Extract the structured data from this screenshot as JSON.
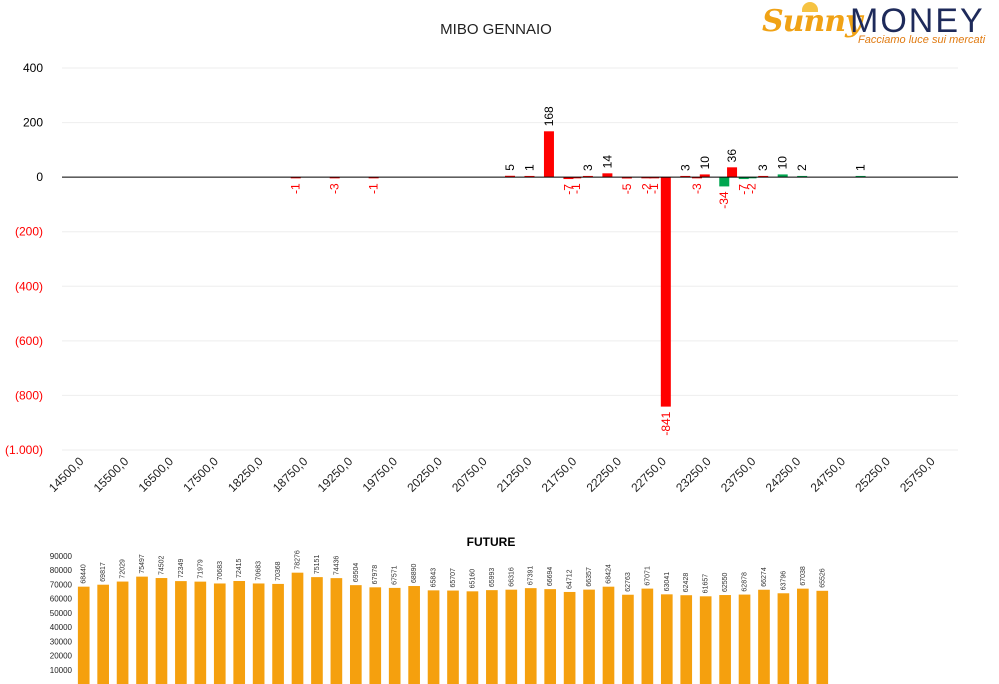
{
  "chart_data": [
    {
      "type": "bar",
      "title": "MIBO GENNAIO",
      "ylim": [
        -1000,
        400
      ],
      "y_ticks": [
        400,
        200,
        0,
        -200,
        -400,
        -600,
        -800,
        -1000
      ],
      "y_tick_labels": [
        "400",
        "200",
        "0",
        "(200)",
        "(400)",
        "(600)",
        "(800)",
        "(1.000)"
      ],
      "x_min": 14500,
      "x_max": 26000,
      "x_ticks": [
        "14500,0",
        "15500,0",
        "16500,0",
        "17500,0",
        "18250,0",
        "18750,0",
        "19250,0",
        "19750,0",
        "20250,0",
        "20750,0",
        "21250,0",
        "21750,0",
        "22250,0",
        "22750,0",
        "23250,0",
        "23750,0",
        "24250,0",
        "24750,0",
        "25250,0",
        "25750,0"
      ],
      "colors": {
        "red": "#ff0000",
        "green": "#00a650",
        "label_neg": "#ff0000",
        "label_pos": "#000000"
      },
      "points": [
        {
          "x": 17500,
          "value": -1,
          "label": "-1",
          "color": "red"
        },
        {
          "x": 18000,
          "value": -3,
          "label": "-3",
          "color": "red"
        },
        {
          "x": 18500,
          "value": -1,
          "label": "-1",
          "color": "red"
        },
        {
          "x": 20250,
          "value": 5,
          "label": "5",
          "color": "red"
        },
        {
          "x": 20500,
          "value": 1,
          "label": "1",
          "color": "red"
        },
        {
          "x": 20750,
          "value": 168,
          "label": "168",
          "color": "red"
        },
        {
          "x": 21000,
          "value": -7,
          "label": "-7",
          "color": "red"
        },
        {
          "x": 21100,
          "value": -1,
          "label": "-1",
          "color": "red"
        },
        {
          "x": 21250,
          "value": 3,
          "label": "3",
          "color": "red"
        },
        {
          "x": 21500,
          "value": 14,
          "label": "14",
          "color": "red"
        },
        {
          "x": 21750,
          "value": -5,
          "label": "-5",
          "color": "red"
        },
        {
          "x": 22000,
          "value": -2,
          "label": "-2",
          "color": "red"
        },
        {
          "x": 22100,
          "value": -1,
          "label": "-1",
          "color": "red"
        },
        {
          "x": 22250,
          "value": -841,
          "label": "-841",
          "color": "red"
        },
        {
          "x": 22500,
          "value": 3,
          "label": "3",
          "color": "red"
        },
        {
          "x": 22650,
          "value": -3,
          "label": "-3",
          "color": "red"
        },
        {
          "x": 22750,
          "value": 10,
          "label": "10",
          "color": "red"
        },
        {
          "x": 23000,
          "value": -34,
          "label": "-34",
          "color": "green"
        },
        {
          "x": 23100,
          "value": 36,
          "label": "36",
          "color": "red"
        },
        {
          "x": 23250,
          "value": -7,
          "label": "-7",
          "color": "green"
        },
        {
          "x": 23350,
          "value": -2,
          "label": "-2",
          "color": "green"
        },
        {
          "x": 23500,
          "value": 3,
          "label": "3",
          "color": "red"
        },
        {
          "x": 23750,
          "value": 10,
          "label": "10",
          "color": "green"
        },
        {
          "x": 24000,
          "value": 2,
          "label": "2",
          "color": "green"
        },
        {
          "x": 24750,
          "value": 1,
          "label": "1",
          "color": "green"
        }
      ]
    },
    {
      "type": "bar",
      "title": "FUTURE",
      "ylim": [
        0,
        90000
      ],
      "y_ticks": [
        10000,
        20000,
        30000,
        40000,
        50000,
        60000,
        70000,
        80000,
        90000
      ],
      "bar_color": "#f5a00e",
      "values": [
        68440,
        69817,
        72029,
        75497,
        74502,
        72349,
        71979,
        70683,
        72415,
        70683,
        70368,
        78276,
        75151,
        74436,
        69504,
        67978,
        67571,
        68890,
        65843,
        65707,
        65160,
        65993,
        66316,
        67391,
        66694,
        64712,
        66357,
        68424,
        62763,
        67071,
        63041,
        62428,
        61657,
        62550,
        62878,
        66274,
        63796,
        67038,
        65526
      ]
    }
  ],
  "logo": {
    "brand_a": "Sunny",
    "brand_b": "MONEY",
    "tagline": "Facciamo luce sui mercati"
  }
}
